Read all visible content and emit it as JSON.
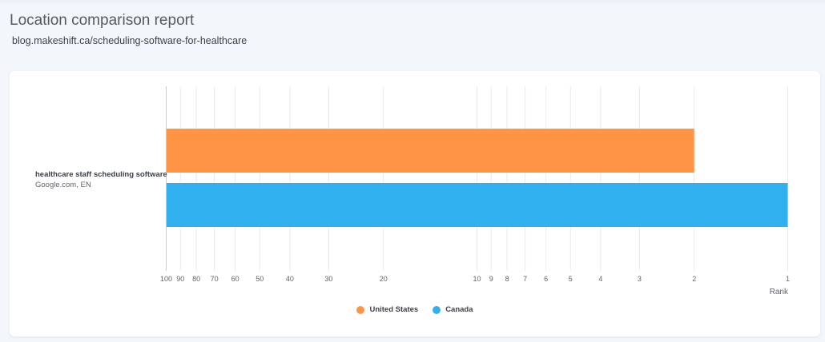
{
  "report": {
    "title": "Location comparison report",
    "url": "blog.makeshift.ca/scheduling-software-for-healthcare"
  },
  "chart_data": {
    "type": "bar",
    "orientation": "horizontal",
    "categories": [
      "healthcare staff scheduling software"
    ],
    "category_sublabels": [
      "Google.com, EN"
    ],
    "series": [
      {
        "name": "United States",
        "color": "#ff9544",
        "values": [
          2
        ]
      },
      {
        "name": "Canada",
        "color": "#31b0f0",
        "values": [
          1
        ]
      }
    ],
    "xlabel": "Rank",
    "xscale": "log-reversed",
    "xlim": [
      100,
      1
    ],
    "xticks": [
      100,
      90,
      80,
      70,
      60,
      50,
      40,
      30,
      20,
      10,
      9,
      8,
      7,
      6,
      5,
      4,
      3,
      2,
      1
    ],
    "grid": true,
    "legend_position": "bottom"
  }
}
